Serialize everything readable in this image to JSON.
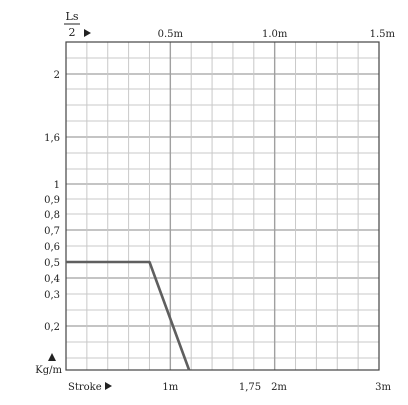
{
  "chart_data": {
    "type": "line",
    "top_axis": {
      "label_numerator": "Ls",
      "label_denominator": "2",
      "ticks": [
        {
          "value": 0.5,
          "label": "0.5m"
        },
        {
          "value": 1.0,
          "label": "1.0m"
        },
        {
          "value": 1.5,
          "label": "1.5m"
        }
      ],
      "range": [
        0,
        1.5
      ]
    },
    "bottom_axis": {
      "label": "Stroke",
      "ticks": [
        {
          "value": 1,
          "label": "1m"
        },
        {
          "value": 1.75,
          "label": "1,75"
        },
        {
          "value": 2,
          "label": "2m"
        },
        {
          "value": 3,
          "label": "3m"
        }
      ],
      "range": [
        0,
        3
      ]
    },
    "y_axis": {
      "unit_label": "Kg/m",
      "ticks": [
        {
          "value": 2,
          "label": "2"
        },
        {
          "value": 1.6,
          "label": "1,6"
        },
        {
          "value": 1,
          "label": "1"
        },
        {
          "value": 0.9,
          "label": "0,9"
        },
        {
          "value": 0.8,
          "label": "0,8"
        },
        {
          "value": 0.7,
          "label": "0,7"
        },
        {
          "value": 0.6,
          "label": "0,6"
        },
        {
          "value": 0.5,
          "label": "0,5"
        },
        {
          "value": 0.4,
          "label": "0,4"
        },
        {
          "value": 0.3,
          "label": "0,3"
        },
        {
          "value": 0.2,
          "label": "0,2"
        }
      ],
      "range_bottom": 0.1,
      "range_top": 2.3
    },
    "series": [
      {
        "color": "#5f5f5f",
        "points": [
          {
            "x": 0,
            "y": 0.5
          },
          {
            "x": 0.4,
            "y": 0.5
          },
          {
            "x": 0.59,
            "y": 0.1
          }
        ]
      }
    ],
    "grid": true
  },
  "colors": {
    "grid_major": "#a0a0a0",
    "grid_minor": "#c8c8c8",
    "frame": "#444444",
    "line": "#5f5f5f",
    "text": "#222222"
  }
}
